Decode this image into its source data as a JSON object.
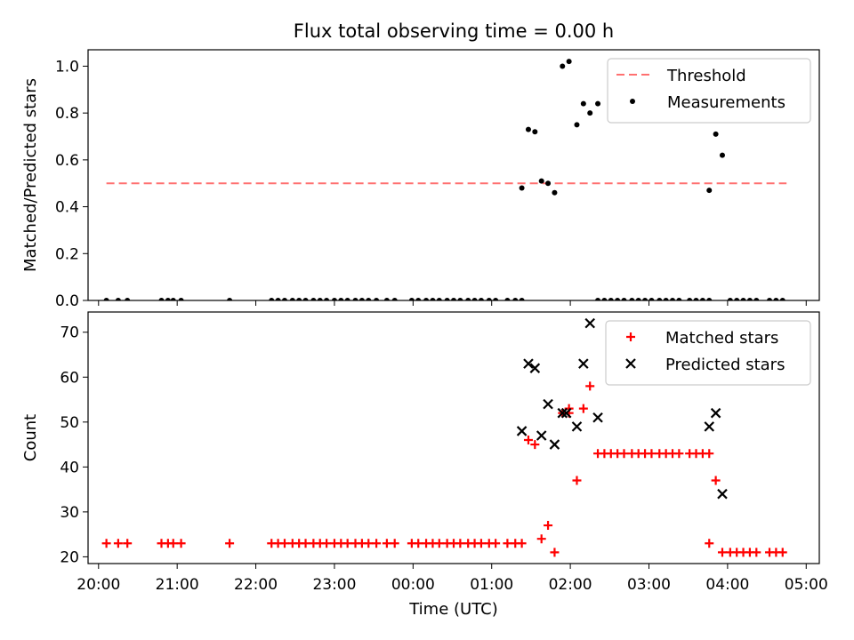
{
  "figure_title": "Flux total observing time = 0.00 h",
  "xlabel": "Time (UTC)",
  "x_ticks": [
    "20:00",
    "21:00",
    "22:00",
    "23:00",
    "00:00",
    "01:00",
    "02:00",
    "03:00",
    "04:00",
    "05:00"
  ],
  "colors": {
    "threshold": "#ff7070",
    "measurements": "#000000",
    "matched": "#ff0000",
    "predicted": "#000000"
  },
  "chart_data": [
    {
      "type": "scatter",
      "panel": "top",
      "ylabel": "Matched/Predicted stars",
      "xlim": [
        "19:52",
        "05:10"
      ],
      "ylim": [
        0,
        1.07
      ],
      "y_ticks": [
        "0.0",
        "0.2",
        "0.4",
        "0.6",
        "0.8",
        "1.0"
      ],
      "legend_position": "top-right",
      "threshold": {
        "name": "Threshold",
        "y": 0.5,
        "x_range": [
          "20:06",
          "04:45"
        ],
        "style": "dashed"
      },
      "series": [
        {
          "name": "Measurements",
          "points": [
            [
              "20:06",
              0
            ],
            [
              "20:15",
              0
            ],
            [
              "20:22",
              0
            ],
            [
              "20:48",
              0
            ],
            [
              "20:53",
              0
            ],
            [
              "20:57",
              0
            ],
            [
              "21:03",
              0
            ],
            [
              "21:40",
              0
            ],
            [
              "22:12",
              0
            ],
            [
              "22:17",
              0
            ],
            [
              "22:22",
              0
            ],
            [
              "22:28",
              0
            ],
            [
              "22:33",
              0
            ],
            [
              "22:38",
              0
            ],
            [
              "22:44",
              0
            ],
            [
              "22:49",
              0
            ],
            [
              "22:54",
              0
            ],
            [
              "23:00",
              0
            ],
            [
              "23:05",
              0
            ],
            [
              "23:10",
              0
            ],
            [
              "23:16",
              0
            ],
            [
              "23:21",
              0
            ],
            [
              "23:26",
              0
            ],
            [
              "23:32",
              0
            ],
            [
              "23:40",
              0
            ],
            [
              "23:46",
              0
            ],
            [
              "23:59",
              0
            ],
            [
              "00:04",
              0
            ],
            [
              "00:10",
              0
            ],
            [
              "00:15",
              0
            ],
            [
              "00:20",
              0
            ],
            [
              "00:26",
              0
            ],
            [
              "00:31",
              0
            ],
            [
              "00:36",
              0
            ],
            [
              "00:42",
              0
            ],
            [
              "00:47",
              0
            ],
            [
              "00:52",
              0
            ],
            [
              "00:58",
              0
            ],
            [
              "01:03",
              0
            ],
            [
              "01:12",
              0
            ],
            [
              "01:18",
              0
            ],
            [
              "01:23",
              0
            ],
            [
              "01:23",
              0.48
            ],
            [
              "01:28",
              0.73
            ],
            [
              "01:33",
              0.72
            ],
            [
              "01:38",
              0.51
            ],
            [
              "01:43",
              0.5
            ],
            [
              "01:48",
              0.46
            ],
            [
              "01:54",
              1.0
            ],
            [
              "01:59",
              1.02
            ],
            [
              "02:05",
              0.75
            ],
            [
              "02:10",
              0.84
            ],
            [
              "02:15",
              0.8
            ],
            [
              "02:21",
              0.84
            ],
            [
              "02:21",
              0
            ],
            [
              "02:26",
              0
            ],
            [
              "02:31",
              0
            ],
            [
              "02:36",
              0
            ],
            [
              "02:41",
              0
            ],
            [
              "02:47",
              0
            ],
            [
              "02:52",
              0
            ],
            [
              "02:57",
              0
            ],
            [
              "03:02",
              0
            ],
            [
              "03:08",
              0
            ],
            [
              "03:13",
              0
            ],
            [
              "03:18",
              0
            ],
            [
              "03:23",
              0
            ],
            [
              "03:31",
              0
            ],
            [
              "03:36",
              0
            ],
            [
              "03:41",
              0
            ],
            [
              "03:46",
              0
            ],
            [
              "03:46",
              0.47
            ],
            [
              "03:51",
              0.71
            ],
            [
              "03:56",
              0.62
            ],
            [
              "04:02",
              0
            ],
            [
              "04:07",
              0
            ],
            [
              "04:12",
              0
            ],
            [
              "04:17",
              0
            ],
            [
              "04:22",
              0
            ],
            [
              "04:32",
              0
            ],
            [
              "04:37",
              0
            ],
            [
              "04:42",
              0
            ]
          ]
        }
      ]
    },
    {
      "type": "scatter",
      "panel": "bottom",
      "ylabel": "Count",
      "xlim": [
        "19:52",
        "05:10"
      ],
      "ylim": [
        18.5,
        74.5
      ],
      "y_ticks": [
        "20",
        "30",
        "40",
        "50",
        "60",
        "70"
      ],
      "legend_position": "top-right",
      "series": [
        {
          "name": "Matched stars",
          "marker": "plus",
          "points": [
            [
              "20:06",
              23
            ],
            [
              "20:15",
              23
            ],
            [
              "20:22",
              23
            ],
            [
              "20:48",
              23
            ],
            [
              "20:53",
              23
            ],
            [
              "20:57",
              23
            ],
            [
              "21:03",
              23
            ],
            [
              "21:40",
              23
            ],
            [
              "22:12",
              23
            ],
            [
              "22:17",
              23
            ],
            [
              "22:22",
              23
            ],
            [
              "22:28",
              23
            ],
            [
              "22:33",
              23
            ],
            [
              "22:38",
              23
            ],
            [
              "22:44",
              23
            ],
            [
              "22:49",
              23
            ],
            [
              "22:54",
              23
            ],
            [
              "23:00",
              23
            ],
            [
              "23:05",
              23
            ],
            [
              "23:10",
              23
            ],
            [
              "23:16",
              23
            ],
            [
              "23:21",
              23
            ],
            [
              "23:26",
              23
            ],
            [
              "23:32",
              23
            ],
            [
              "23:40",
              23
            ],
            [
              "23:46",
              23
            ],
            [
              "23:59",
              23
            ],
            [
              "00:04",
              23
            ],
            [
              "00:10",
              23
            ],
            [
              "00:15",
              23
            ],
            [
              "00:20",
              23
            ],
            [
              "00:26",
              23
            ],
            [
              "00:31",
              23
            ],
            [
              "00:36",
              23
            ],
            [
              "00:42",
              23
            ],
            [
              "00:47",
              23
            ],
            [
              "00:52",
              23
            ],
            [
              "00:58",
              23
            ],
            [
              "01:03",
              23
            ],
            [
              "01:12",
              23
            ],
            [
              "01:18",
              23
            ],
            [
              "01:23",
              23
            ],
            [
              "01:28",
              46
            ],
            [
              "01:33",
              45
            ],
            [
              "01:38",
              24
            ],
            [
              "01:43",
              27
            ],
            [
              "01:48",
              21
            ],
            [
              "01:54",
              52
            ],
            [
              "01:59",
              53
            ],
            [
              "01:59",
              52
            ],
            [
              "02:05",
              37
            ],
            [
              "02:10",
              53
            ],
            [
              "02:15",
              58
            ],
            [
              "02:21",
              43
            ],
            [
              "02:26",
              43
            ],
            [
              "02:31",
              43
            ],
            [
              "02:36",
              43
            ],
            [
              "02:41",
              43
            ],
            [
              "02:47",
              43
            ],
            [
              "02:52",
              43
            ],
            [
              "02:57",
              43
            ],
            [
              "03:02",
              43
            ],
            [
              "03:08",
              43
            ],
            [
              "03:13",
              43
            ],
            [
              "03:18",
              43
            ],
            [
              "03:23",
              43
            ],
            [
              "03:31",
              43
            ],
            [
              "03:36",
              43
            ],
            [
              "03:41",
              43
            ],
            [
              "03:46",
              43
            ],
            [
              "03:46",
              23
            ],
            [
              "03:51",
              37
            ],
            [
              "03:56",
              21
            ],
            [
              "04:02",
              21
            ],
            [
              "04:07",
              21
            ],
            [
              "04:12",
              21
            ],
            [
              "04:17",
              21
            ],
            [
              "04:22",
              21
            ],
            [
              "04:32",
              21
            ],
            [
              "04:37",
              21
            ],
            [
              "04:42",
              21
            ]
          ]
        },
        {
          "name": "Predicted stars",
          "marker": "x",
          "points": [
            [
              "01:23",
              48
            ],
            [
              "01:28",
              63
            ],
            [
              "01:33",
              62
            ],
            [
              "01:38",
              47
            ],
            [
              "01:43",
              54
            ],
            [
              "01:48",
              45
            ],
            [
              "01:54",
              52
            ],
            [
              "01:57",
              52
            ],
            [
              "02:05",
              49
            ],
            [
              "02:10",
              63
            ],
            [
              "02:15",
              72
            ],
            [
              "02:21",
              51
            ],
            [
              "03:46",
              49
            ],
            [
              "03:51",
              52
            ],
            [
              "03:56",
              34
            ]
          ]
        }
      ]
    }
  ]
}
